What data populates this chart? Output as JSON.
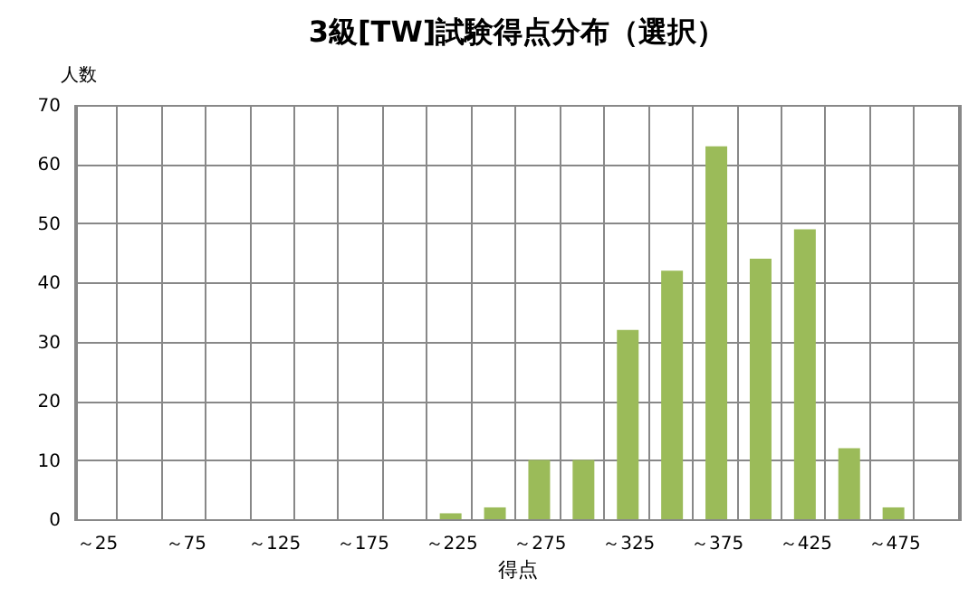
{
  "chart_data": {
    "type": "bar",
    "title": "3級[TW]試験得点分布（選択）",
    "xlabel": "得点",
    "ylabel": "人数",
    "categories": [
      "～25",
      null,
      "～75",
      null,
      "～125",
      null,
      "～175",
      null,
      "～225",
      null,
      "～275",
      null,
      "～325",
      null,
      "～375",
      null,
      "～425",
      null,
      "～475",
      null
    ],
    "values": [
      0,
      0,
      0,
      0,
      0,
      0,
      0,
      0,
      1,
      2,
      10,
      10,
      32,
      42,
      63,
      44,
      49,
      12,
      2,
      0
    ],
    "color": "#9bbb59",
    "ylim": [
      0,
      70
    ],
    "yticks": [
      0,
      10,
      20,
      30,
      40,
      50,
      60,
      70
    ],
    "grid": true
  }
}
